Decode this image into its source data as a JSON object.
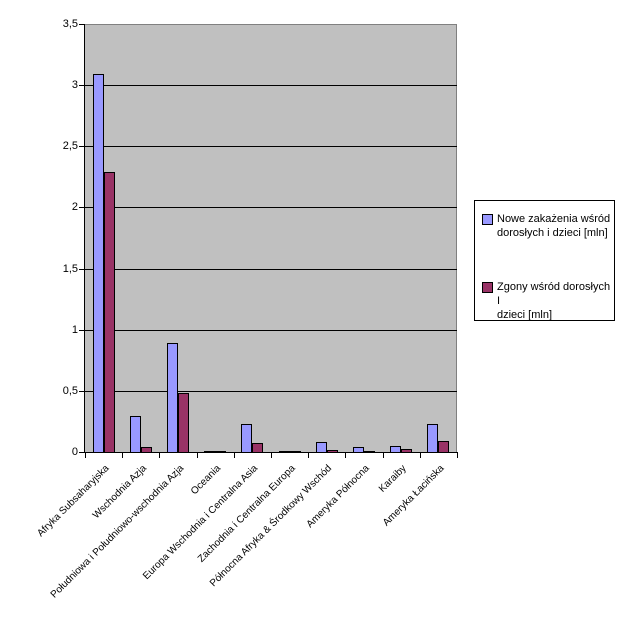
{
  "chart_data": {
    "type": "bar",
    "title": "",
    "categories": [
      "Afryka Subsaharyjska",
      "Wschodnia Azja",
      "Południowa i Południowo-wschodnia Azja",
      "Oceania",
      "Europa Wschodnia i Centralna Asia",
      "Zachodnia i Centralna Europa",
      "Północna Afryka & Środkowy Wschód",
      "Ameryka Północna",
      "Karaiby",
      "Ameryka Łacińska"
    ],
    "series": [
      {
        "name": "Nowe zakażenia wśród dorosłych i dzieci [mln]",
        "name_lines": [
          "Nowe zakażenia wśród",
          "dorosłych i dzieci [mln]"
        ],
        "color": "#9999FF",
        "values": [
          3.1,
          0.3,
          0.9,
          0.01,
          0.24,
          0.02,
          0.09,
          0.045,
          0.055,
          0.24
        ]
      },
      {
        "name": "Zgony wśród dorosłych I dzieci [mln]",
        "name_lines": [
          "Zgony wśród dorosłych I",
          "dzieci [mln]"
        ],
        "color": "#993366",
        "values": [
          2.3,
          0.05,
          0.49,
          0.003,
          0.08,
          0.01,
          0.025,
          0.02,
          0.03,
          0.1
        ]
      }
    ],
    "y_axis": {
      "min": 0,
      "max": 3.5,
      "tick_step": 0.5,
      "decimal_separator": ",",
      "ticks": [
        {
          "value": 0,
          "label": "0"
        },
        {
          "value": 0.5,
          "label": "0,5"
        },
        {
          "value": 1,
          "label": "1"
        },
        {
          "value": 1.5,
          "label": "1,5"
        },
        {
          "value": 2,
          "label": "2"
        },
        {
          "value": 2.5,
          "label": "2,5"
        },
        {
          "value": 3,
          "label": "3"
        },
        {
          "value": 3.5,
          "label": "3,5"
        }
      ]
    },
    "grid": true,
    "legend_position": "right",
    "colors": {
      "plot_bg": "#C0C0C0",
      "gridline": "#000000",
      "axis": "#000000",
      "plot_border": "#808080",
      "legend_bg": "#FFFFFF",
      "legend_border": "#000000",
      "page_bg": "#FFFFFF"
    }
  }
}
